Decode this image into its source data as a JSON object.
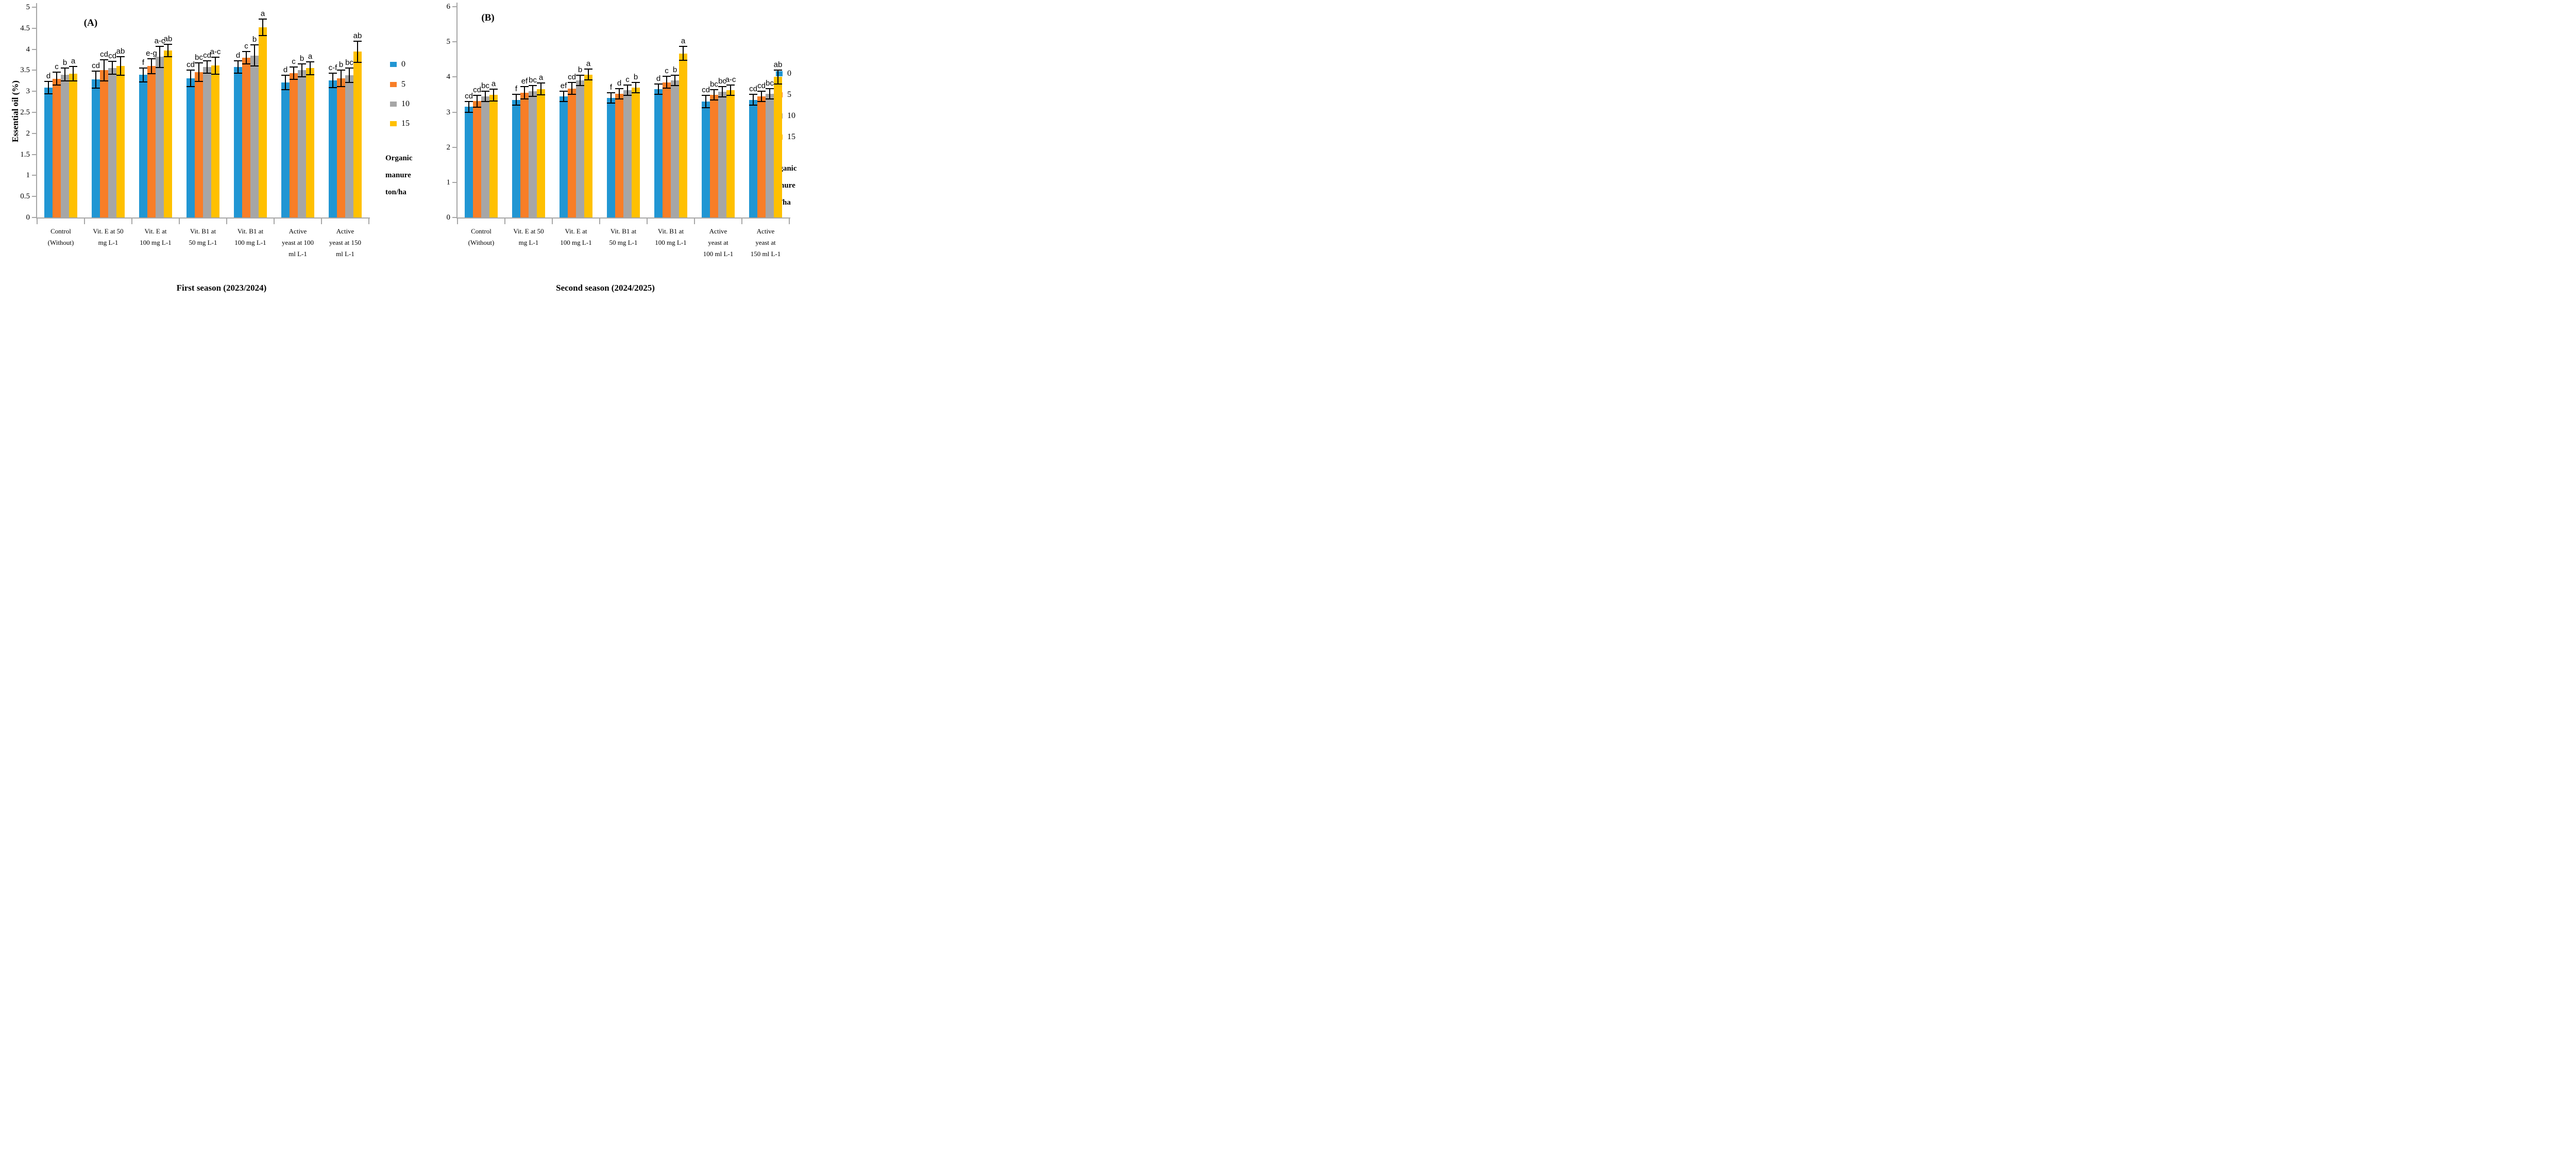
{
  "figure": {
    "ylabel": "Essential oil (%)",
    "axis_color": "#A6A6A6",
    "legend_title_lines": [
      "Organic",
      "manure",
      "ton/ha"
    ],
    "legend_items": [
      "0",
      "5",
      "10",
      "15"
    ],
    "series_colors": [
      "#2196D3",
      "#F87E27",
      "#A6A6A6",
      "#FFC000"
    ]
  },
  "chart_data": [
    {
      "type": "bar",
      "panel_label": "(A)",
      "title": "First season (2023/2024)",
      "xlabel": "",
      "ylabel": "Essential oil (%)",
      "ylim": [
        0,
        5
      ],
      "ytick_step": 0.5,
      "yticks": [
        "0",
        "0.5",
        "1",
        "1.5",
        "2",
        "2.5",
        "3",
        "3.5",
        "4",
        "4.5",
        "5"
      ],
      "grid": false,
      "legend_position": "right",
      "categories": [
        [
          "Control",
          "(Without)"
        ],
        [
          "Vit. E at 50",
          "mg L-1"
        ],
        [
          "Vit. E at",
          "100 mg L-1"
        ],
        [
          "Vit. B1 at",
          "50 mg L-1"
        ],
        [
          "Vit. B1 at",
          "100 mg L-1"
        ],
        [
          "Active",
          "yeast at 100",
          "ml L-1"
        ],
        [
          "Active",
          "yeast at 150",
          "ml L-1"
        ]
      ],
      "series": [
        {
          "name": "0",
          "color": "#2196D3",
          "values": [
            3.09,
            3.28,
            3.39,
            3.31,
            3.58,
            3.21,
            3.26
          ],
          "errors": [
            0.15,
            0.2,
            0.17,
            0.2,
            0.15,
            0.17,
            0.17
          ],
          "letters": [
            "d",
            "cd",
            "f",
            "cd",
            "d",
            "d",
            "c-f"
          ]
        },
        {
          "name": "5",
          "color": "#F87E27",
          "values": [
            3.3,
            3.5,
            3.6,
            3.46,
            3.8,
            3.43,
            3.31
          ],
          "errors": [
            0.15,
            0.25,
            0.18,
            0.22,
            0.15,
            0.15,
            0.2
          ],
          "letters": [
            "c",
            "cd",
            "e-g",
            "bc",
            "c",
            "c",
            "b"
          ]
        },
        {
          "name": "10",
          "color": "#A6A6A6",
          "values": [
            3.4,
            3.56,
            3.82,
            3.58,
            3.85,
            3.5,
            3.38
          ],
          "errors": [
            0.15,
            0.15,
            0.25,
            0.15,
            0.25,
            0.15,
            0.17
          ],
          "letters": [
            "b",
            "cd",
            "a-c",
            "cd",
            "b",
            "b",
            "bc"
          ]
        },
        {
          "name": "15",
          "color": "#FFC000",
          "values": [
            3.42,
            3.6,
            3.97,
            3.61,
            4.52,
            3.55,
            3.94
          ],
          "errors": [
            0.17,
            0.22,
            0.15,
            0.2,
            0.2,
            0.15,
            0.25
          ],
          "letters": [
            "a",
            "ab",
            "ab",
            "a-c",
            "a",
            "a",
            "ab"
          ]
        }
      ]
    },
    {
      "type": "bar",
      "panel_label": "(B)",
      "title": "Second season (2024/2025)",
      "xlabel": "",
      "ylabel": "",
      "ylim": [
        0,
        6
      ],
      "ytick_step": 1,
      "yticks": [
        "0",
        "1",
        "2",
        "3",
        "4",
        "5",
        "6"
      ],
      "grid": false,
      "legend_position": "right",
      "categories": [
        [
          "Control",
          "(Without)"
        ],
        [
          "Vit. E at 50",
          "mg L-1"
        ],
        [
          "Vit. E at",
          "100 mg L-1"
        ],
        [
          "Vit. B1 at",
          "50 mg L-1"
        ],
        [
          "Vit. B1 at",
          "100 mg L-1"
        ],
        [
          "Active",
          "yeast at",
          "100 ml L-1"
        ],
        [
          "Active",
          "yeast at",
          "150 ml L-1"
        ]
      ],
      "series": [
        {
          "name": "0",
          "color": "#2196D3",
          "values": [
            3.15,
            3.35,
            3.45,
            3.4,
            3.65,
            3.3,
            3.35
          ],
          "errors": [
            0.15,
            0.15,
            0.15,
            0.15,
            0.15,
            0.17,
            0.15
          ],
          "letters": [
            "cd",
            "f",
            "ef",
            "f",
            "d",
            "cd",
            "cd"
          ]
        },
        {
          "name": "5",
          "color": "#F87E27",
          "values": [
            3.31,
            3.55,
            3.67,
            3.52,
            3.85,
            3.49,
            3.45
          ],
          "errors": [
            0.17,
            0.18,
            0.17,
            0.15,
            0.17,
            0.15,
            0.15
          ],
          "letters": [
            "cd",
            "ef",
            "cd",
            "d",
            "c",
            "bc",
            "cd"
          ]
        },
        {
          "name": "10",
          "color": "#A6A6A6",
          "values": [
            3.45,
            3.6,
            3.9,
            3.62,
            3.9,
            3.58,
            3.52
          ],
          "errors": [
            0.15,
            0.15,
            0.15,
            0.15,
            0.15,
            0.15,
            0.15
          ],
          "letters": [
            "bc",
            "bc",
            "b",
            "c",
            "b",
            "bc",
            "bc"
          ]
        },
        {
          "name": "15",
          "color": "#FFC000",
          "values": [
            3.49,
            3.66,
            4.07,
            3.7,
            4.67,
            3.62,
            4.0
          ],
          "errors": [
            0.17,
            0.17,
            0.15,
            0.15,
            0.2,
            0.15,
            0.2
          ],
          "letters": [
            "a",
            "a",
            "a",
            "b",
            "a",
            "a-c",
            "ab"
          ]
        }
      ]
    }
  ]
}
